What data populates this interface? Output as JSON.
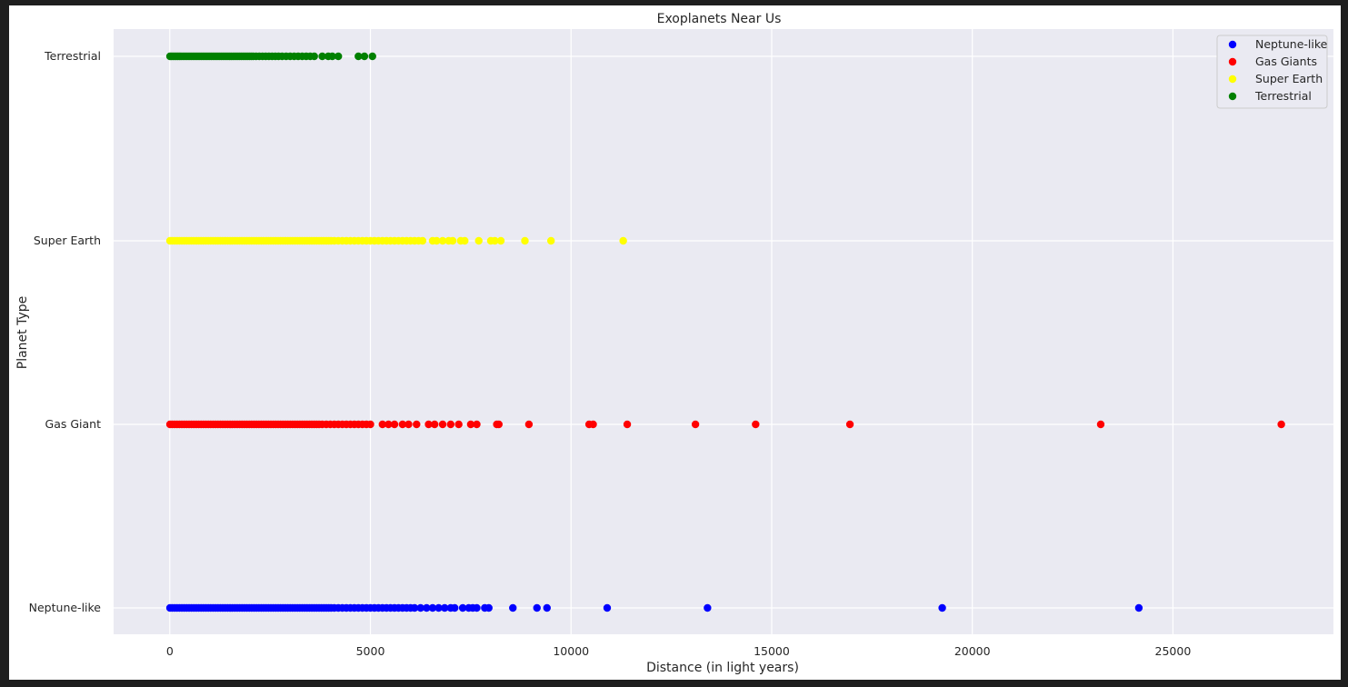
{
  "chart_data": {
    "type": "scatter",
    "title": "Exoplanets Near Us",
    "xlabel": "Distance (in light years)",
    "ylabel": "Planet Type",
    "xlim": [
      -1400,
      29000
    ],
    "x_ticks": [
      "0",
      "5000",
      "10000",
      "15000",
      "20000",
      "25000"
    ],
    "y_categories": [
      "Neptune-like",
      "Gas Giant",
      "Super Earth",
      "Terrestrial"
    ],
    "grid": true,
    "legend_position": "top-right",
    "colors": {
      "background": "#eaeaf2",
      "grid": "#ffffff",
      "neptune": "#0000ff",
      "gas": "#ff0000",
      "super": "#ffff00",
      "terrestrial": "#008000"
    },
    "series": [
      {
        "name": "Neptune-like",
        "category": "Neptune-like",
        "color": "#0000ff",
        "x": [
          5,
          60,
          120,
          180,
          240,
          300,
          360,
          420,
          480,
          540,
          600,
          660,
          720,
          780,
          840,
          900,
          960,
          1020,
          1080,
          1140,
          1200,
          1260,
          1320,
          1380,
          1440,
          1500,
          1560,
          1620,
          1680,
          1740,
          1800,
          1860,
          1920,
          1980,
          2040,
          2100,
          2160,
          2220,
          2280,
          2340,
          2400,
          2460,
          2520,
          2580,
          2640,
          2700,
          2760,
          2820,
          2880,
          2940,
          3000,
          3060,
          3120,
          3180,
          3240,
          3300,
          3360,
          3420,
          3480,
          3540,
          3600,
          3660,
          3720,
          3780,
          3840,
          3900,
          3960,
          4020,
          4100,
          4200,
          4300,
          4400,
          4500,
          4600,
          4700,
          4800,
          4900,
          5000,
          5100,
          5200,
          5300,
          5400,
          5500,
          5600,
          5700,
          5800,
          5900,
          6000,
          6100,
          6250,
          6400,
          6550,
          6700,
          6850,
          7000,
          7100,
          7300,
          7450,
          7550,
          7650,
          7850,
          7950,
          8550,
          9150,
          9400,
          10900,
          13400,
          19250,
          24150
        ]
      },
      {
        "name": "Gas Giants",
        "category": "Gas Giant",
        "color": "#ff0000",
        "x": [
          5,
          60,
          120,
          180,
          240,
          300,
          360,
          420,
          480,
          540,
          600,
          660,
          720,
          780,
          840,
          900,
          960,
          1020,
          1080,
          1140,
          1200,
          1260,
          1320,
          1380,
          1440,
          1500,
          1560,
          1620,
          1680,
          1740,
          1800,
          1860,
          1920,
          1980,
          2040,
          2100,
          2160,
          2220,
          2280,
          2340,
          2400,
          2460,
          2520,
          2580,
          2640,
          2700,
          2760,
          2820,
          2880,
          2940,
          3000,
          3060,
          3120,
          3180,
          3240,
          3300,
          3360,
          3420,
          3480,
          3540,
          3600,
          3660,
          3720,
          3800,
          3900,
          4000,
          4100,
          4200,
          4300,
          4400,
          4500,
          4600,
          4700,
          4800,
          4900,
          5000,
          5300,
          5450,
          5600,
          5800,
          5950,
          6150,
          6450,
          6600,
          6800,
          7000,
          7200,
          7500,
          7650,
          8150,
          8200,
          8950,
          10450,
          10550,
          11400,
          13100,
          14600,
          16950,
          23200,
          27700
        ]
      },
      {
        "name": "Super Earth",
        "category": "Super Earth",
        "color": "#ffff00",
        "x": [
          5,
          60,
          120,
          180,
          240,
          300,
          360,
          420,
          480,
          540,
          600,
          660,
          720,
          780,
          840,
          900,
          960,
          1020,
          1080,
          1140,
          1200,
          1260,
          1320,
          1380,
          1440,
          1500,
          1560,
          1620,
          1680,
          1740,
          1800,
          1860,
          1920,
          1980,
          2040,
          2100,
          2160,
          2220,
          2280,
          2340,
          2400,
          2460,
          2520,
          2580,
          2640,
          2700,
          2760,
          2820,
          2880,
          2940,
          3000,
          3060,
          3120,
          3180,
          3240,
          3300,
          3360,
          3420,
          3480,
          3540,
          3600,
          3660,
          3720,
          3780,
          3840,
          3900,
          3960,
          4020,
          4100,
          4200,
          4300,
          4400,
          4500,
          4600,
          4700,
          4800,
          4900,
          5000,
          5100,
          5200,
          5300,
          5400,
          5500,
          5600,
          5700,
          5800,
          5900,
          6000,
          6100,
          6200,
          6300,
          6550,
          6650,
          6800,
          6950,
          7050,
          7250,
          7350,
          7700,
          8000,
          8100,
          8250,
          8850,
          9500,
          11300
        ]
      },
      {
        "name": "Terrestrial",
        "category": "Terrestrial",
        "color": "#008000",
        "x": [
          5,
          40,
          80,
          120,
          160,
          200,
          240,
          280,
          330,
          380,
          430,
          480,
          530,
          580,
          630,
          680,
          730,
          780,
          830,
          880,
          930,
          980,
          1030,
          1080,
          1130,
          1180,
          1230,
          1280,
          1330,
          1380,
          1430,
          1480,
          1530,
          1580,
          1630,
          1680,
          1730,
          1780,
          1830,
          1880,
          1930,
          1980,
          2030,
          2080,
          2150,
          2230,
          2310,
          2390,
          2470,
          2550,
          2630,
          2710,
          2800,
          2900,
          3000,
          3100,
          3200,
          3300,
          3400,
          3500,
          3600,
          3800,
          3950,
          4050,
          4200,
          4700,
          4850,
          5050
        ]
      }
    ]
  }
}
